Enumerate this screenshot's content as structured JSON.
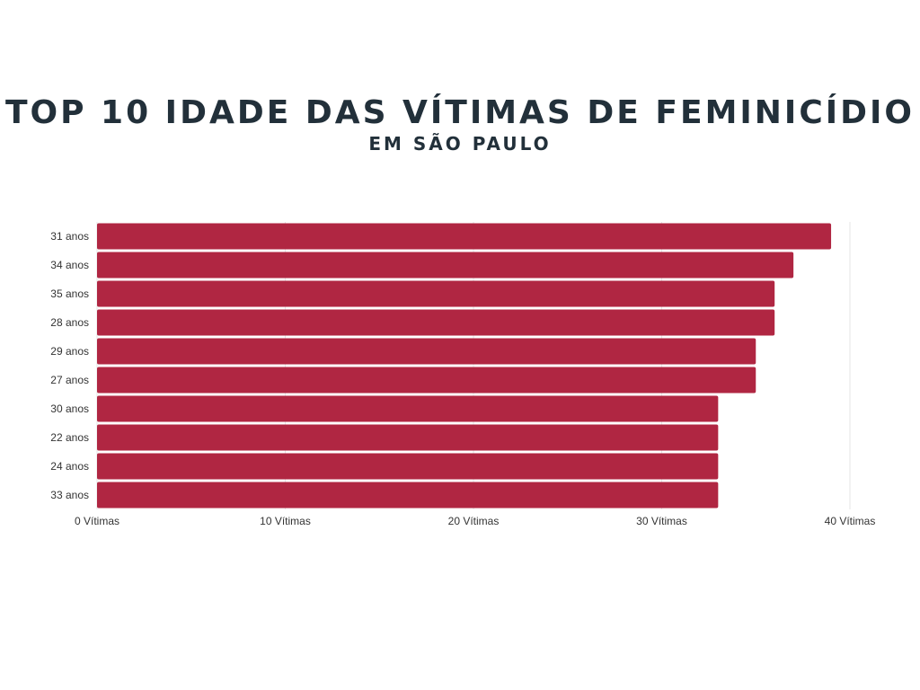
{
  "chart_data": {
    "type": "bar",
    "orientation": "horizontal",
    "title": "TOP 10 IDADE DAS VÍTIMAS DE FEMINICÍDIO",
    "subtitle": "EM SÃO PAULO",
    "categories": [
      "31 anos",
      "34 anos",
      "35 anos",
      "28 anos",
      "29 anos",
      "27 anos",
      "30 anos",
      "22 anos",
      "24 anos",
      "33 anos"
    ],
    "values": [
      39,
      37,
      36,
      36,
      35,
      35,
      33,
      33,
      33,
      33
    ],
    "xlim": [
      0,
      40
    ],
    "xticks": [
      0,
      10,
      20,
      30,
      40
    ],
    "xtick_labels": [
      "0 Vítimas",
      "10 Vítimas",
      "20 Vítimas",
      "30 Vítimas",
      "40 Vítimas"
    ],
    "grid": "vertical",
    "bar_color": "#b02642",
    "grid_color": "#e6e6e6"
  }
}
